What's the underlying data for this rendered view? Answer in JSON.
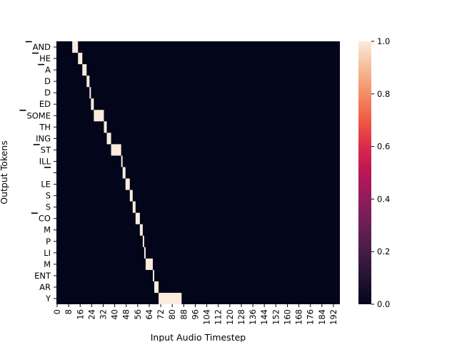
{
  "chart_data": {
    "type": "heatmap",
    "title": "",
    "xlabel": "Input Audio Timestep",
    "ylabel": "Output Tokens",
    "x_range": [
      0,
      197
    ],
    "x_ticks": [
      0,
      8,
      16,
      24,
      32,
      40,
      48,
      56,
      64,
      72,
      80,
      88,
      96,
      104,
      112,
      120,
      128,
      136,
      144,
      152,
      160,
      168,
      176,
      184,
      192
    ],
    "y_tokens": [
      "▁AND",
      "▁HE",
      "▁A",
      "D",
      "D",
      "ED",
      "▁SOME",
      "TH",
      "ING",
      "▁ST",
      "ILL",
      "▁",
      "LE",
      "S",
      "S",
      "▁CO",
      "M",
      "P",
      "LI",
      "M",
      "ENT",
      "AR",
      "Y"
    ],
    "y_tick_labels": [
      "AND",
      "HE",
      "A",
      "D",
      "D",
      "ED",
      "SOME",
      "TH",
      "ING",
      "ST",
      "ILL",
      "",
      "LE",
      "S",
      "S",
      "CO",
      "M",
      "P",
      "LI",
      "M",
      "ENT",
      "AR",
      "Y"
    ],
    "alignment": [
      {
        "token_index": 0,
        "x_start": 11,
        "x_end": 15,
        "value": 1.0
      },
      {
        "token_index": 1,
        "x_start": 15,
        "x_end": 18,
        "value": 1.0
      },
      {
        "token_index": 2,
        "x_start": 18,
        "x_end": 21,
        "value": 1.0
      },
      {
        "token_index": 3,
        "x_start": 21,
        "x_end": 23,
        "value": 1.0
      },
      {
        "token_index": 4,
        "x_start": 23,
        "x_end": 24,
        "value": 1.0
      },
      {
        "token_index": 5,
        "x_start": 24,
        "x_end": 26,
        "value": 1.0
      },
      {
        "token_index": 6,
        "x_start": 26,
        "x_end": 33,
        "value": 1.0
      },
      {
        "token_index": 7,
        "x_start": 33,
        "x_end": 35,
        "value": 1.0
      },
      {
        "token_index": 8,
        "x_start": 35,
        "x_end": 38,
        "value": 1.0
      },
      {
        "token_index": 9,
        "x_start": 38,
        "x_end": 45,
        "value": 1.0
      },
      {
        "token_index": 10,
        "x_start": 45,
        "x_end": 46,
        "value": 1.0
      },
      {
        "token_index": 11,
        "x_start": 46,
        "x_end": 48,
        "value": 1.0
      },
      {
        "token_index": 12,
        "x_start": 48,
        "x_end": 51,
        "value": 1.0
      },
      {
        "token_index": 13,
        "x_start": 51,
        "x_end": 53,
        "value": 1.0
      },
      {
        "token_index": 14,
        "x_start": 53,
        "x_end": 55,
        "value": 1.0
      },
      {
        "token_index": 15,
        "x_start": 55,
        "x_end": 58,
        "value": 1.0
      },
      {
        "token_index": 16,
        "x_start": 58,
        "x_end": 60,
        "value": 1.0
      },
      {
        "token_index": 17,
        "x_start": 60,
        "x_end": 61,
        "value": 1.0
      },
      {
        "token_index": 18,
        "x_start": 61,
        "x_end": 62,
        "value": 1.0
      },
      {
        "token_index": 19,
        "x_start": 62,
        "x_end": 67,
        "value": 1.0
      },
      {
        "token_index": 20,
        "x_start": 67,
        "x_end": 68,
        "value": 1.0
      },
      {
        "token_index": 21,
        "x_start": 68,
        "x_end": 71,
        "value": 1.0
      },
      {
        "token_index": 22,
        "x_start": 71,
        "x_end": 87,
        "value": 1.0
      }
    ],
    "background_value": 0.0,
    "colorbar": {
      "min": 0.0,
      "max": 1.0,
      "ticks": [
        "0.0",
        "0.2",
        "0.4",
        "0.6",
        "0.8",
        "1.0"
      ],
      "colormap": "rocket",
      "low_color": "#03051a",
      "high_color": "#faebdd"
    },
    "grid": false,
    "legend": "none"
  }
}
